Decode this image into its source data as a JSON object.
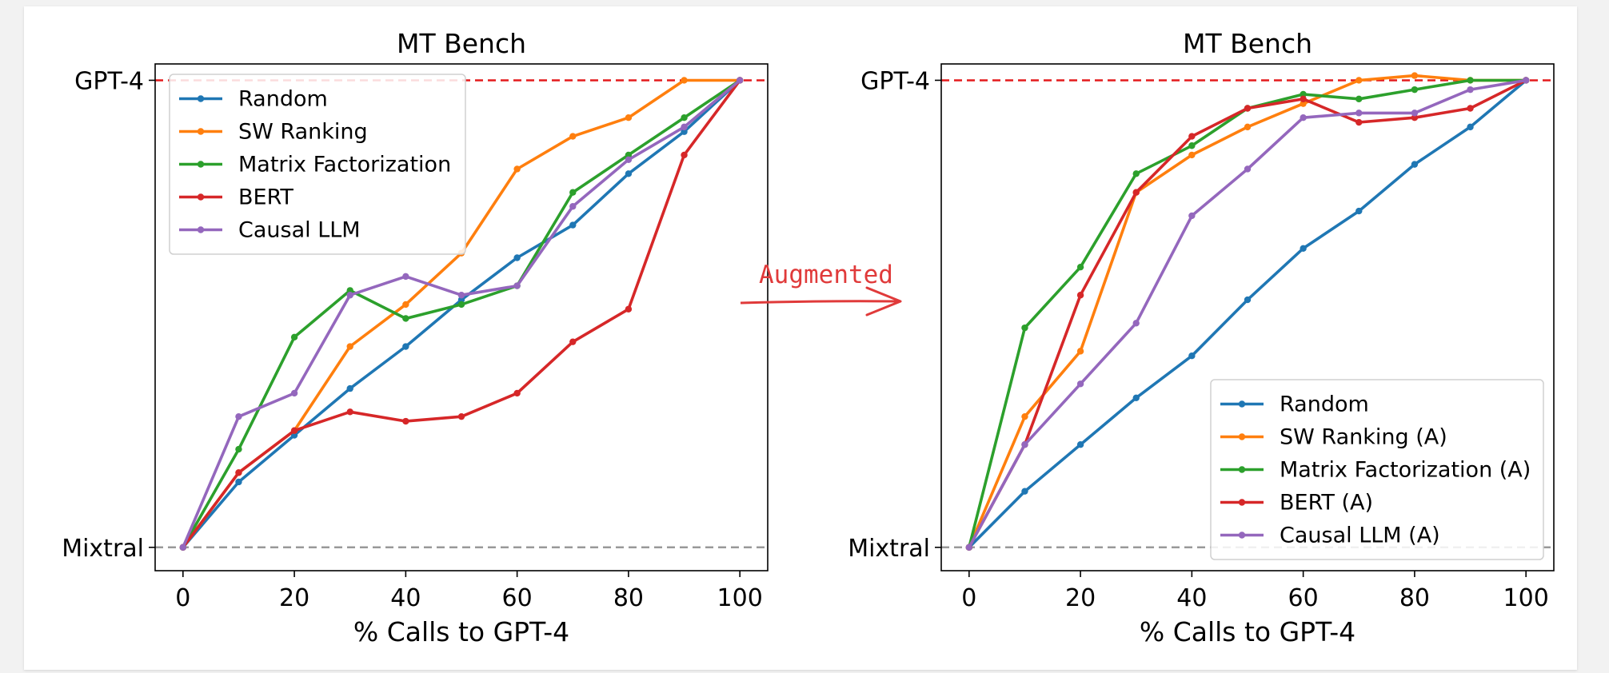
{
  "chart_data": [
    {
      "type": "line",
      "title": "MT Bench",
      "xlabel": "% Calls to GPT-4",
      "ylabel": "",
      "xlim": [
        -5,
        105
      ],
      "ylim": [
        -0.05,
        1.035
      ],
      "xticks": [
        0,
        20,
        40,
        60,
        80,
        100
      ],
      "yticks": [
        {
          "value": 0,
          "label": "Mixtral"
        },
        {
          "value": 1,
          "label": "GPT-4"
        }
      ],
      "reference_lines": [
        {
          "y": 1,
          "color": "#e41a1c",
          "style": "dashed",
          "label": "GPT-4"
        },
        {
          "y": 0,
          "color": "#999999",
          "style": "dashed",
          "label": "Mixtral"
        }
      ],
      "legend_position": "top-left",
      "series": [
        {
          "name": "Random",
          "color": "#1f77b4",
          "x": [
            0,
            10,
            20,
            30,
            40,
            50,
            60,
            70,
            80,
            90,
            100
          ],
          "y": [
            0,
            0.14,
            0.24,
            0.34,
            0.43,
            0.53,
            0.62,
            0.69,
            0.8,
            0.89,
            1
          ]
        },
        {
          "name": "SW Ranking",
          "color": "#ff7f0e",
          "x": [
            0,
            10,
            20,
            30,
            40,
            50,
            60,
            70,
            80,
            90,
            100
          ],
          "y": [
            0,
            0.16,
            0.25,
            0.43,
            0.52,
            0.63,
            0.81,
            0.88,
            0.92,
            1,
            1
          ]
        },
        {
          "name": "Matrix Factorization",
          "color": "#2ca02c",
          "x": [
            0,
            10,
            20,
            30,
            40,
            50,
            60,
            70,
            80,
            90,
            100
          ],
          "y": [
            0,
            0.21,
            0.45,
            0.55,
            0.49,
            0.52,
            0.56,
            0.76,
            0.84,
            0.92,
            1
          ]
        },
        {
          "name": "BERT",
          "color": "#d62728",
          "x": [
            0,
            10,
            20,
            30,
            40,
            50,
            60,
            70,
            80,
            90,
            100
          ],
          "y": [
            0,
            0.16,
            0.25,
            0.29,
            0.27,
            0.28,
            0.33,
            0.44,
            0.51,
            0.84,
            1
          ]
        },
        {
          "name": "Causal LLM",
          "color": "#9467bd",
          "x": [
            0,
            10,
            20,
            30,
            40,
            50,
            60,
            70,
            80,
            90,
            100
          ],
          "y": [
            0,
            0.28,
            0.33,
            0.54,
            0.58,
            0.54,
            0.56,
            0.73,
            0.83,
            0.9,
            1
          ]
        }
      ]
    },
    {
      "type": "line",
      "title": "MT Bench",
      "xlabel": "% Calls to GPT-4",
      "ylabel": "",
      "xlim": [
        -5,
        105
      ],
      "ylim": [
        -0.05,
        1.035
      ],
      "xticks": [
        0,
        20,
        40,
        60,
        80,
        100
      ],
      "yticks": [
        {
          "value": 0,
          "label": "Mixtral"
        },
        {
          "value": 1,
          "label": "GPT-4"
        }
      ],
      "reference_lines": [
        {
          "y": 1,
          "color": "#e41a1c",
          "style": "dashed",
          "label": "GPT-4"
        },
        {
          "y": 0,
          "color": "#999999",
          "style": "dashed",
          "label": "Mixtral"
        }
      ],
      "legend_position": "bottom-right",
      "series": [
        {
          "name": "Random",
          "color": "#1f77b4",
          "x": [
            0,
            10,
            20,
            30,
            40,
            50,
            60,
            70,
            80,
            90,
            100
          ],
          "y": [
            0,
            0.12,
            0.22,
            0.32,
            0.41,
            0.53,
            0.64,
            0.72,
            0.82,
            0.9,
            1
          ]
        },
        {
          "name": "SW Ranking (A)",
          "color": "#ff7f0e",
          "x": [
            0,
            10,
            20,
            30,
            40,
            50,
            60,
            70,
            80,
            90,
            100
          ],
          "y": [
            0,
            0.28,
            0.42,
            0.76,
            0.84,
            0.9,
            0.95,
            1,
            1.01,
            1,
            1
          ]
        },
        {
          "name": "Matrix Factorization (A)",
          "color": "#2ca02c",
          "x": [
            0,
            10,
            20,
            30,
            40,
            50,
            60,
            70,
            80,
            90,
            100
          ],
          "y": [
            0,
            0.47,
            0.6,
            0.8,
            0.86,
            0.94,
            0.97,
            0.96,
            0.98,
            1,
            1
          ]
        },
        {
          "name": "BERT (A)",
          "color": "#d62728",
          "x": [
            0,
            10,
            20,
            30,
            40,
            50,
            60,
            70,
            80,
            90,
            100
          ],
          "y": [
            0,
            0.22,
            0.54,
            0.76,
            0.88,
            0.94,
            0.96,
            0.91,
            0.92,
            0.94,
            1
          ]
        },
        {
          "name": "Causal LLM (A)",
          "color": "#9467bd",
          "x": [
            0,
            10,
            20,
            30,
            40,
            50,
            60,
            70,
            80,
            90,
            100
          ],
          "y": [
            0,
            0.22,
            0.35,
            0.48,
            0.71,
            0.81,
            0.92,
            0.93,
            0.93,
            0.98,
            1
          ]
        }
      ]
    }
  ],
  "annotation": {
    "text": "Augmented",
    "color": "#e03a3a"
  }
}
